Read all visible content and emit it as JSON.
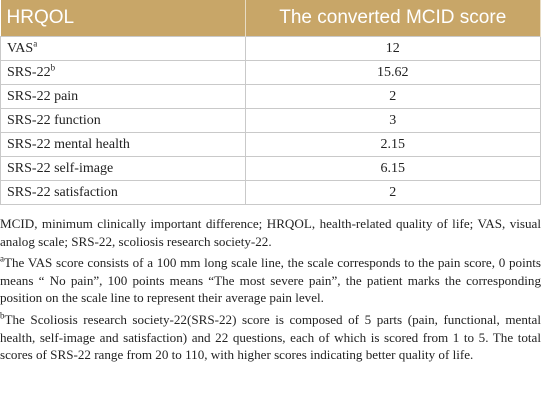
{
  "table": {
    "header": [
      "HRQOL",
      "The converted MCID score"
    ],
    "rows": [
      [
        {
          "text": "VAS",
          "sup": "a"
        },
        12
      ],
      [
        {
          "text": "SRS-22",
          "sup": "b"
        },
        15.62
      ],
      [
        {
          "text": "SRS-22 pain"
        },
        2
      ],
      [
        {
          "text": "SRS-22 function"
        },
        3
      ],
      [
        {
          "text": "SRS-22 mental health"
        },
        2.15
      ],
      [
        {
          "text": "SRS-22 self-image"
        },
        6.15
      ],
      [
        {
          "text": "SRS-22 satisfaction"
        },
        2
      ]
    ]
  },
  "notes": {
    "abbreviations": "MCID, minimum clinically important difference; HRQOL, health-related quality of life; VAS, visual analog scale; SRS-22, scoliosis research society-22.",
    "footnotes": [
      {
        "marker": "a",
        "text": "The VAS score consists of a 100 mm long scale line, the scale corresponds to the pain score, 0 points means “ No pain”, 100 points means “The most severe pain”, the patient marks the corresponding position on the scale line to represent their average pain level."
      },
      {
        "marker": "b",
        "text": "The Scoliosis research society-22(SRS-22) score is composed of 5 parts (pain, functional, mental health, self-image and satisfaction) and 22 questions, each of which is scored from 1 to 5. The total scores of SRS-22 range from 20 to 110, with higher scores indicating better quality of life."
      }
    ]
  }
}
